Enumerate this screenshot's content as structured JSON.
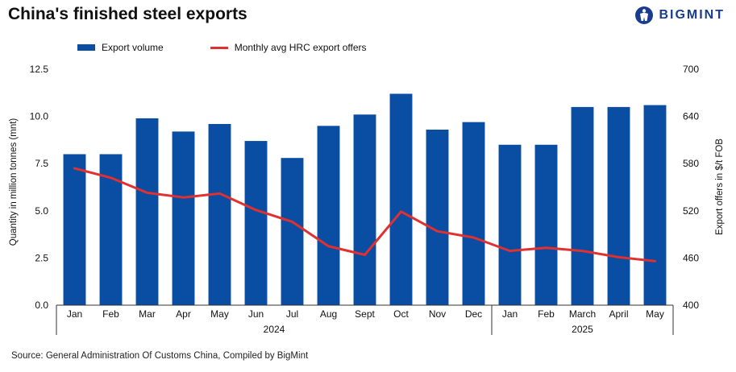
{
  "chart_data": {
    "type": "bar",
    "title": "China's finished steel exports",
    "brand": "BIGMINT",
    "categories": [
      "Jan",
      "Feb",
      "Mar",
      "Apr",
      "May",
      "Jun",
      "Jul",
      "Aug",
      "Sept",
      "Oct",
      "Nov",
      "Dec",
      "Jan",
      "Feb",
      "March",
      "April",
      "May"
    ],
    "years": [
      {
        "label": "2024",
        "start": 0,
        "end": 11
      },
      {
        "label": "2025",
        "start": 12,
        "end": 16
      }
    ],
    "series": [
      {
        "name": "Export volume",
        "type": "bar",
        "axis": "left",
        "color": "#0a4ea3",
        "values": [
          8.0,
          8.0,
          9.9,
          9.2,
          9.6,
          8.7,
          7.8,
          9.5,
          10.1,
          11.2,
          9.3,
          9.7,
          8.5,
          8.5,
          10.5,
          10.5,
          10.6
        ]
      },
      {
        "name": "Monthly avg HRC export offers",
        "type": "line",
        "axis": "right",
        "color": "#e03030",
        "values": [
          574,
          562,
          543,
          537,
          542,
          521,
          506,
          475,
          464,
          519,
          494,
          486,
          469,
          473,
          469,
          461,
          456
        ]
      }
    ],
    "ylabel": "Quantity in million tonnes (mnt)",
    "ylabel_right": "Export offers in $/t FOB",
    "ylim": [
      0,
      12.5
    ],
    "yticks": [
      "0.0",
      "2.5",
      "5.0",
      "7.5",
      "10.0",
      "12.5"
    ],
    "ylim_right": [
      400,
      700
    ],
    "yticks_right": [
      "400",
      "460",
      "520",
      "580",
      "640",
      "700"
    ],
    "grid": false,
    "legend_position": "top"
  },
  "source": "Source: General Administration Of Customs China, Compiled by BigMint"
}
